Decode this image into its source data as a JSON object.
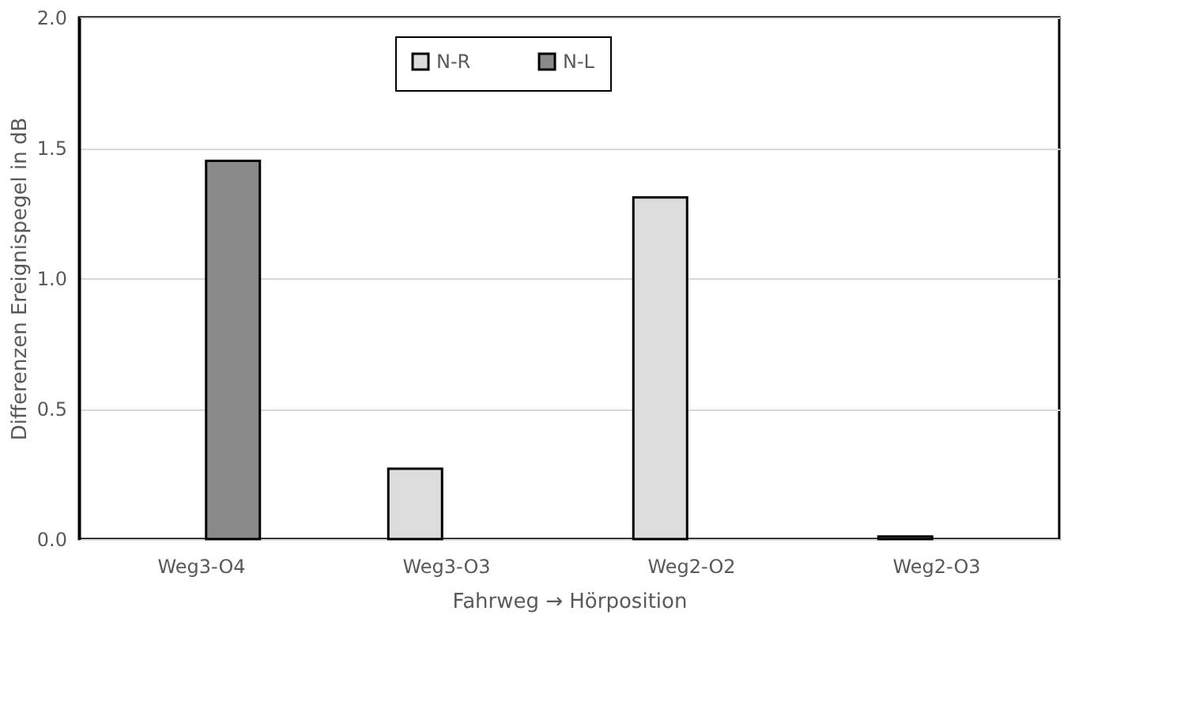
{
  "chart_data": {
    "type": "bar",
    "xlabel": "Fahrweg → Hörposition",
    "ylabel": "Differenzen Ereignispegel in dB",
    "categories": [
      "Weg3-O4",
      "Weg3-O3",
      "Weg2-O2",
      "Weg2-O3"
    ],
    "series": [
      {
        "name": "N-R",
        "color": "#dcdcdc",
        "values": [
          null,
          0.27,
          1.31,
          0.01
        ]
      },
      {
        "name": "N-L",
        "color": "#8a8a8a",
        "values": [
          1.45,
          null,
          null,
          null
        ]
      }
    ],
    "ylim": [
      0,
      2.0
    ],
    "yticks": [
      {
        "value": 0,
        "label": "0.0"
      },
      {
        "value": 0.5,
        "label": "0.5"
      },
      {
        "value": 1.0,
        "label": "1.0"
      },
      {
        "value": 1.5,
        "label": "1.5"
      },
      {
        "value": 2.0,
        "label": "2.0"
      }
    ],
    "grid": "y",
    "legend": "top"
  }
}
